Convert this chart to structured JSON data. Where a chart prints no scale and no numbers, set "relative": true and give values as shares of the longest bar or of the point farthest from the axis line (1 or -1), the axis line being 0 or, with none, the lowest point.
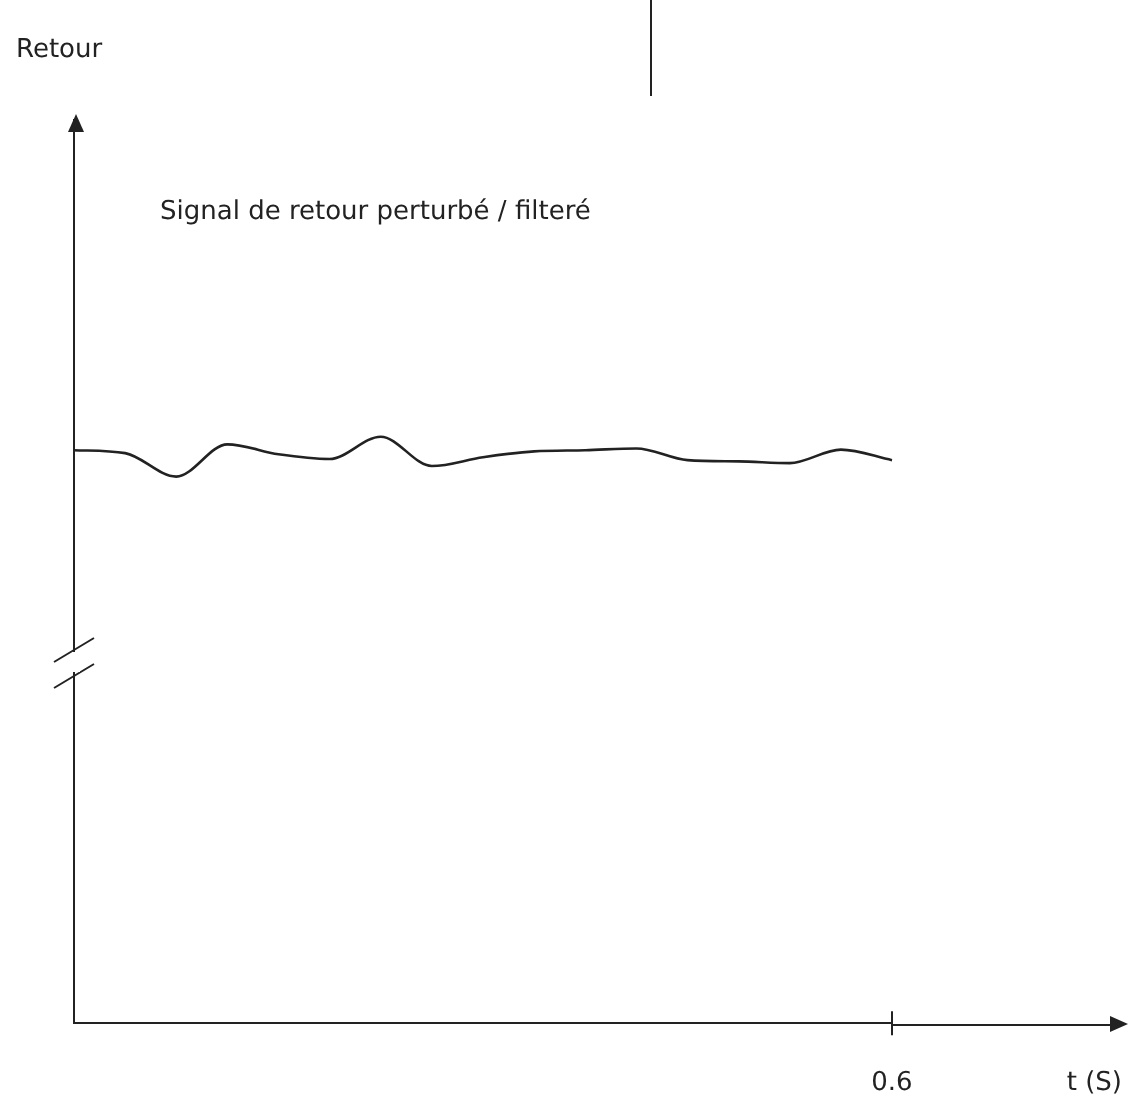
{
  "chart_data": {
    "type": "line",
    "relative": true,
    "annotations": [
      "Retour",
      "Signal de retour perturbé / filteré",
      "0.6",
      "t (S)"
    ],
    "categories": [
      null,
      null,
      null,
      null,
      null,
      null,
      null,
      null,
      null,
      null,
      null,
      null,
      null,
      null,
      null,
      null,
      null
    ],
    "grid": false,
    "legend": false,
    "marker": "none",
    "line_style": "solid",
    "series": [
      {
        "color": "#222222",
        "values": [
          0.977,
          0.972,
          0.932,
          0.987,
          0.97,
          0.962,
          1,
          0.95,
          0.965,
          0.975,
          0.977,
          0.98,
          0.96,
          0.958,
          0.955,
          0.978,
          0.96
        ]
      }
    ]
  }
}
